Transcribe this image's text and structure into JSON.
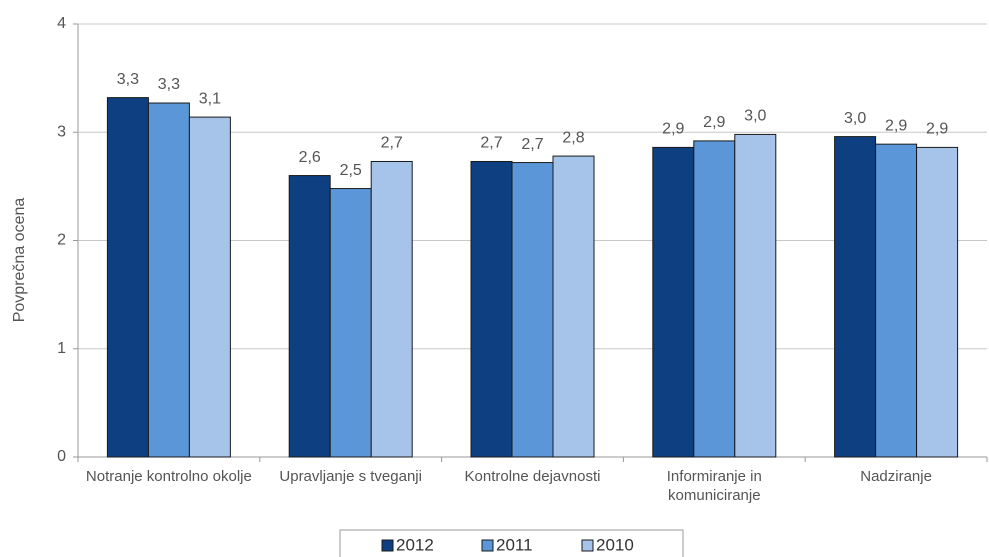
{
  "chart_data": {
    "type": "bar",
    "y_label": "Povprečna ocena",
    "categories": [
      "Notranje kontrolno okolje",
      "Upravljanje s tveganji",
      "Kontrolne dejavnosti",
      "Informiranje in komuniciranje",
      "Nadziranje"
    ],
    "series": [
      {
        "name": "2012",
        "color": "#0e3f80",
        "values": [
          3.32,
          2.6,
          2.73,
          2.86,
          2.96
        ],
        "value_labels": [
          "3,3",
          "2,6",
          "2,7",
          "2,9",
          "3,0"
        ]
      },
      {
        "name": "2011",
        "color": "#5b96d8",
        "values": [
          3.27,
          2.48,
          2.72,
          2.92,
          2.89
        ],
        "value_labels": [
          "3,3",
          "2,5",
          "2,7",
          "2,9",
          "2,9"
        ]
      },
      {
        "name": "2010",
        "color": "#a6c4ea",
        "values": [
          3.14,
          2.73,
          2.78,
          2.98,
          2.86
        ],
        "value_labels": [
          "3,1",
          "2,7",
          "2,8",
          "3,0",
          "2,9"
        ]
      }
    ],
    "ylim": [
      0,
      4
    ],
    "yticks": [
      0,
      1,
      2,
      3,
      4
    ],
    "grid": true,
    "legend": "bottom"
  }
}
